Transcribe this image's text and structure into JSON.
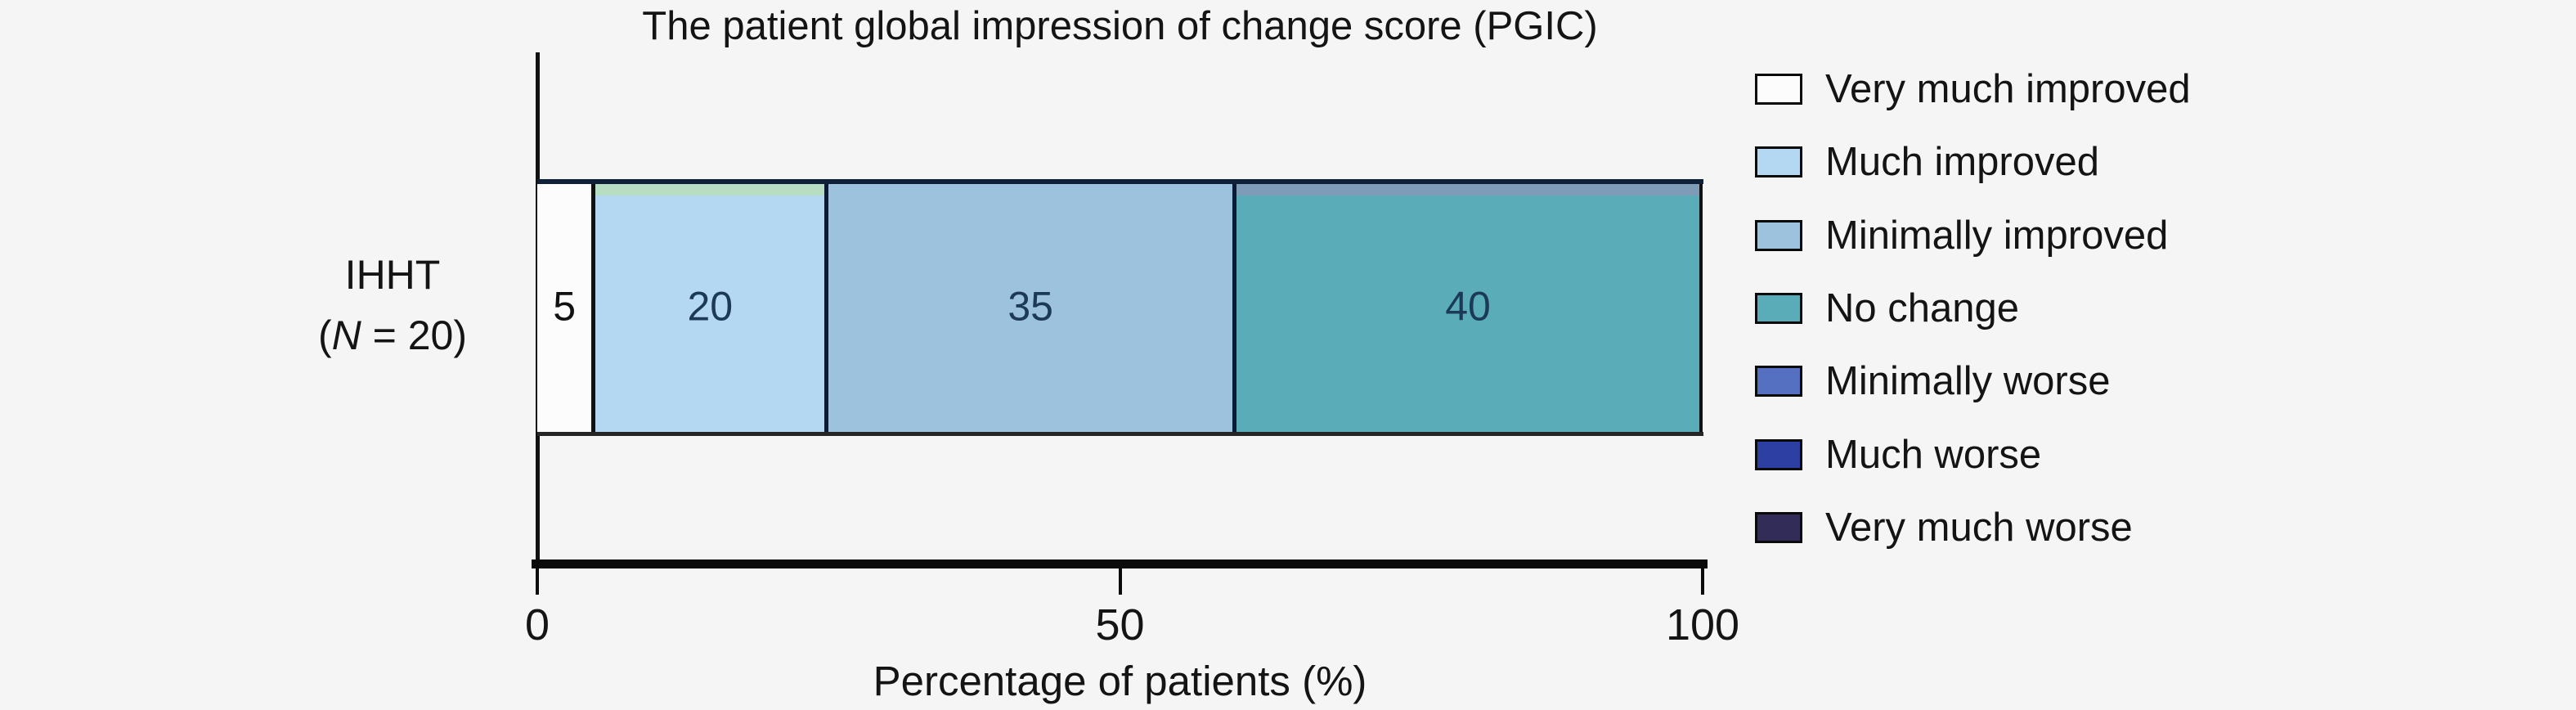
{
  "background": "#f5f5f6",
  "chart_data": {
    "type": "bar",
    "orientation": "horizontal-stacked",
    "title": "The patient global impression of change score (PGIC)",
    "xlabel": "Percentage of patients (%)",
    "xlim": [
      0,
      100
    ],
    "xticks": [
      0,
      50,
      100
    ],
    "grid": false,
    "legend_position": "right",
    "category": {
      "line1": "IHHT",
      "paren_open": "(",
      "n_italic": "N",
      "paren_rest": " = 20)"
    },
    "series": [
      {
        "name": "Very much improved",
        "value": 5,
        "color": "#fcfcfc",
        "label_color": "#111111"
      },
      {
        "name": "Much improved",
        "value": 20,
        "color": "#b4d7f2",
        "top_strip": "#b7ddc3",
        "label_color": "#1c3a58"
      },
      {
        "name": "Minimally improved",
        "value": 35,
        "color": "#9cc2de",
        "label_color": "#1c3a58"
      },
      {
        "name": "No change",
        "value": 40,
        "color": "#5aacb8",
        "top_strip": "#7e9cb8",
        "label_color": "#1c3a58"
      },
      {
        "name": "Minimally worse",
        "value": 0,
        "color": "#5570c0"
      },
      {
        "name": "Much worse",
        "value": 0,
        "color": "#2e3fa3"
      },
      {
        "name": "Very much worse",
        "value": 0,
        "color": "#322d58"
      }
    ],
    "divider_color": "#0c1a33",
    "axis_color": "#0b0b0b"
  }
}
